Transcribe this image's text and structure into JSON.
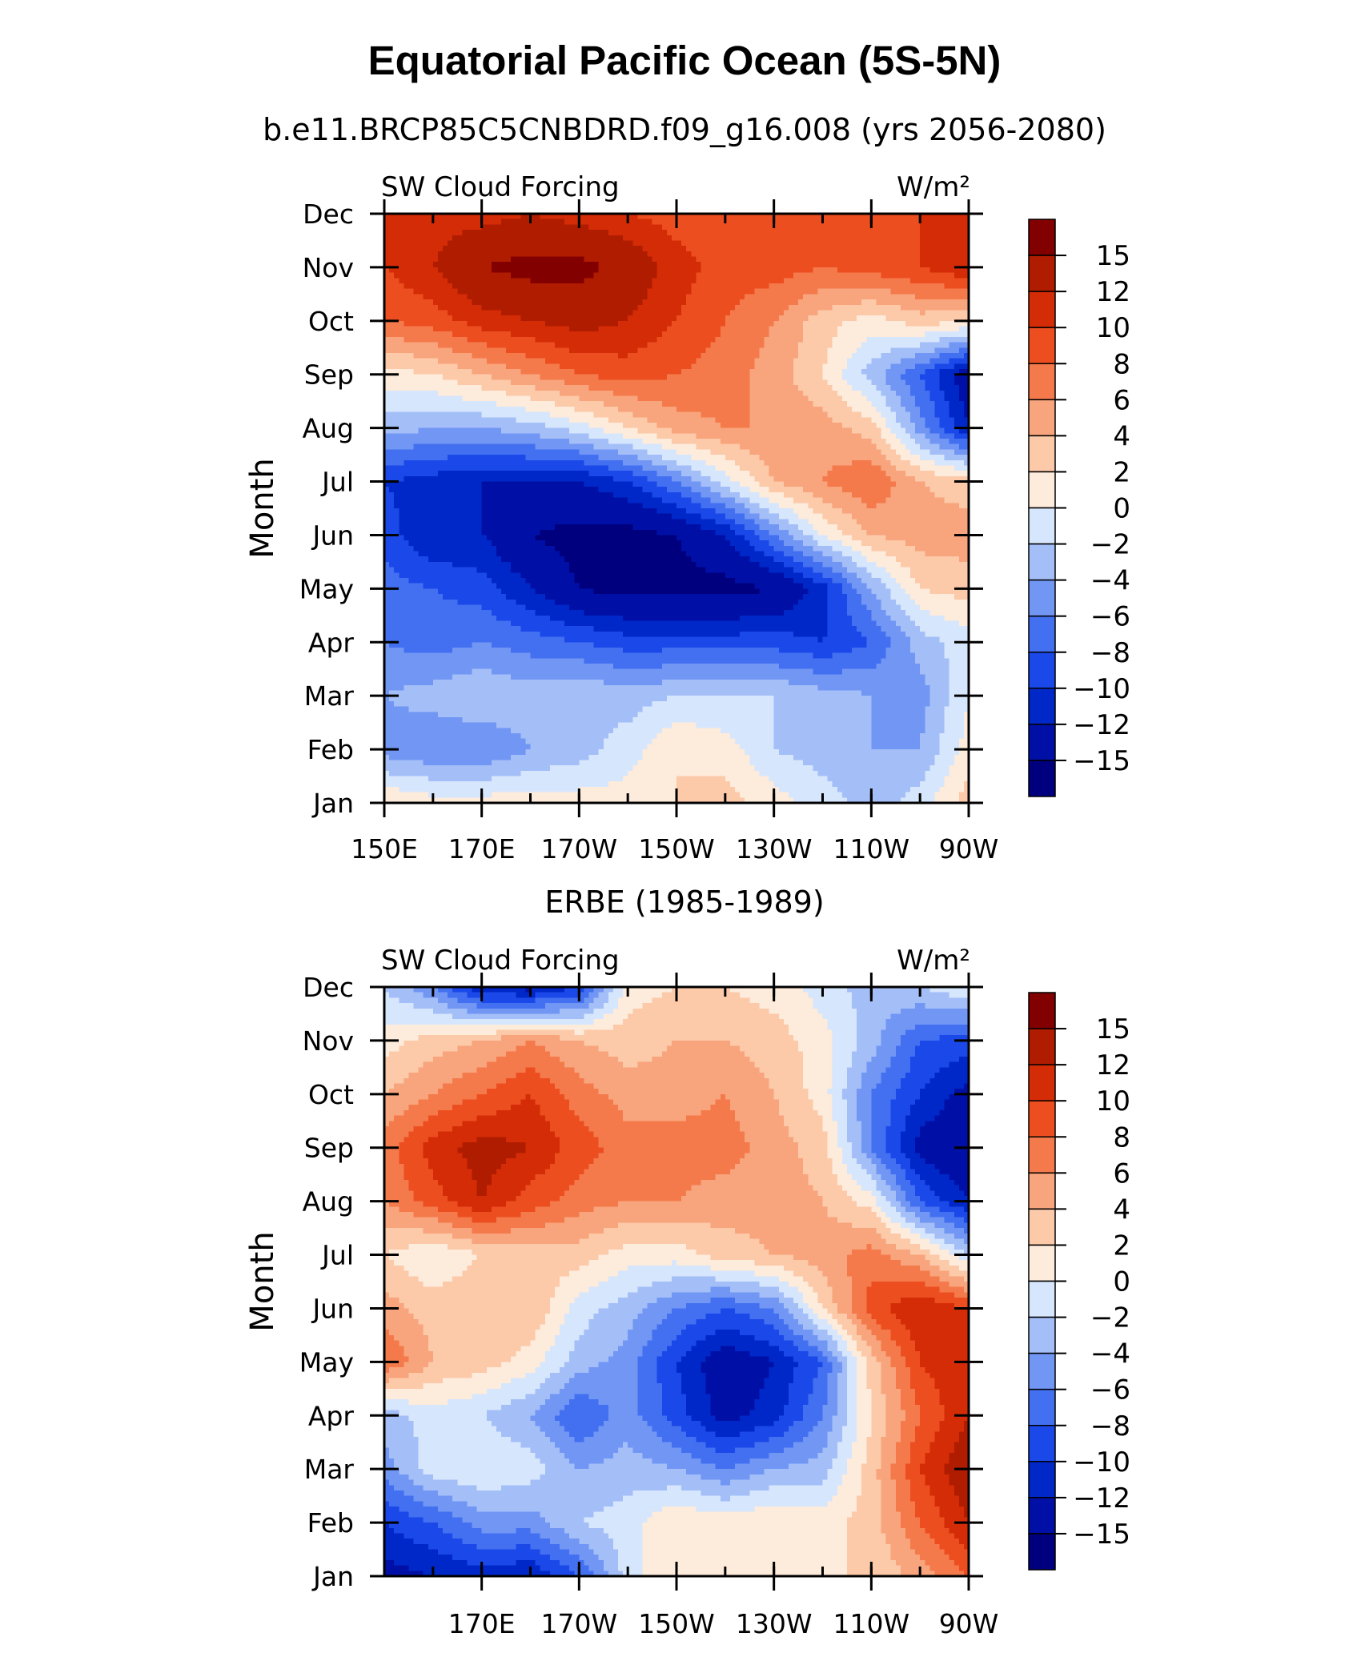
{
  "title": "Equatorial Pacific Ocean (5S-5N)",
  "colorbar": {
    "levels": [
      -15,
      -12,
      -10,
      -8,
      -6,
      -4,
      -2,
      0,
      2,
      4,
      6,
      8,
      10,
      12,
      15
    ],
    "colors": [
      "#00007f",
      "#0010a6",
      "#0028c8",
      "#1b48e8",
      "#4370f0",
      "#7196f4",
      "#a4bef8",
      "#d6e6fc",
      "#fdebdb",
      "#fcc9a9",
      "#f8a47c",
      "#f47a4c",
      "#ec4e20",
      "#d42c06",
      "#b01c00",
      "#830000"
    ]
  },
  "chart_data": [
    {
      "type": "heatmap",
      "subtitle": "b.e11.BRCP85C5CNBDRD.f09_g16.008 (yrs 2056-2080)",
      "left_label": "SW Cloud Forcing",
      "right_label": "W/m²",
      "xlabel": "",
      "ylabel": "Month",
      "x_tick_labels": [
        "150E",
        "170E",
        "170W",
        "150W",
        "130W",
        "110W",
        "90W"
      ],
      "x_tick_values": [
        150,
        170,
        190,
        210,
        230,
        250,
        270
      ],
      "xlim": [
        150,
        270
      ],
      "y_tick_labels": [
        "Jan",
        "Feb",
        "Mar",
        "Apr",
        "May",
        "Jun",
        "Jul",
        "Aug",
        "Sep",
        "Oct",
        "Nov",
        "Dec"
      ],
      "ylim": [
        1,
        12
      ],
      "lons": [
        150,
        160,
        170,
        180,
        190,
        200,
        210,
        220,
        230,
        240,
        250,
        260,
        270
      ],
      "values": [
        [
          2,
          1,
          1,
          1,
          1,
          1,
          2,
          3,
          1,
          -1,
          -3,
          -1,
          3
        ],
        [
          -5,
          -6,
          -6,
          -4,
          -3,
          -1,
          2,
          1,
          -2,
          -3,
          -4,
          -4,
          1
        ],
        [
          -4,
          -3,
          -2,
          -3,
          -2,
          -3,
          -2,
          -2,
          -2,
          -3,
          -4,
          -5,
          0
        ],
        [
          -6,
          -7,
          -6,
          -7,
          -8,
          -9,
          -9,
          -9,
          -9,
          -10,
          -8,
          -3,
          -1
        ],
        [
          -7,
          -8,
          -9,
          -12,
          -15,
          -16,
          -16,
          -16,
          -15,
          -11,
          -4,
          2,
          3
        ],
        [
          -9,
          -12,
          -12,
          -15,
          -16,
          -16,
          -15,
          -12,
          -6,
          0,
          4,
          5,
          5
        ],
        [
          -10,
          -11,
          -12,
          -12,
          -12,
          -10,
          -6,
          -1,
          4,
          6,
          8,
          4,
          3
        ],
        [
          -3,
          -4,
          -4,
          -3,
          -1,
          2,
          5,
          6,
          6,
          5,
          3,
          -5,
          -12
        ],
        [
          1,
          2,
          4,
          6,
          8,
          9,
          8,
          7,
          5,
          2,
          -3,
          -8,
          -14
        ],
        [
          8,
          9,
          11,
          12,
          13,
          12,
          10,
          8,
          6,
          3,
          1,
          3,
          2
        ],
        [
          10,
          12,
          15,
          16,
          16,
          14,
          11,
          9,
          9,
          8,
          9,
          10,
          12
        ],
        [
          10,
          11,
          11,
          12,
          11,
          10,
          9,
          8,
          8,
          8,
          9,
          10,
          10
        ]
      ]
    },
    {
      "type": "heatmap",
      "subtitle": "ERBE (1985-1989)",
      "left_label": "SW Cloud Forcing",
      "right_label": "W/m²",
      "xlabel": "",
      "ylabel": "Month",
      "x_tick_labels": [
        "170E",
        "170W",
        "150W",
        "130W",
        "110W",
        "90W"
      ],
      "x_tick_values": [
        170,
        190,
        210,
        230,
        250,
        270
      ],
      "xlim": [
        150,
        270
      ],
      "y_tick_labels": [
        "Jan",
        "Feb",
        "Mar",
        "Apr",
        "May",
        "Jun",
        "Jul",
        "Aug",
        "Sep",
        "Oct",
        "Nov",
        "Dec"
      ],
      "ylim": [
        1,
        12
      ],
      "lons": [
        150,
        160,
        170,
        180,
        190,
        200,
        210,
        220,
        230,
        240,
        250,
        260,
        270
      ],
      "values": [
        [
          -13,
          -12,
          -11,
          -12,
          -8,
          -1,
          2,
          1,
          1,
          2,
          2,
          5,
          8
        ],
        [
          -10,
          -8,
          -5,
          -5,
          -2,
          -1,
          2,
          1,
          2,
          1,
          3,
          8,
          12
        ],
        [
          -5,
          -1,
          0,
          -1,
          -4,
          -3,
          -4,
          -6,
          -4,
          -3,
          3,
          10,
          14
        ],
        [
          -3,
          -1,
          -2,
          -4,
          -8,
          -5,
          -9,
          -13,
          -11,
          -6,
          2,
          8,
          12
        ],
        [
          8,
          4,
          3,
          1,
          -3,
          -5,
          -10,
          -14,
          -12,
          -8,
          3,
          10,
          12
        ],
        [
          5,
          3,
          4,
          4,
          -1,
          -3,
          -6,
          -8,
          -6,
          2,
          9,
          12,
          10
        ],
        [
          2,
          0,
          2,
          3,
          3,
          1,
          1,
          3,
          4,
          5,
          7,
          4,
          -2
        ],
        [
          6,
          9,
          12,
          9,
          7,
          6,
          6,
          5,
          5,
          4,
          1,
          -8,
          -12
        ],
        [
          7,
          11,
          13,
          12,
          9,
          7,
          7,
          7,
          5,
          3,
          -6,
          -13,
          -15
        ],
        [
          4,
          6,
          8,
          10,
          7,
          5,
          5,
          6,
          4,
          1,
          -6,
          -10,
          -13
        ],
        [
          1,
          3,
          4,
          6,
          4,
          3,
          4,
          4,
          3,
          1,
          -3,
          -8,
          -9
        ],
        [
          -2,
          -6,
          -12,
          -13,
          -10,
          1,
          2,
          2,
          1,
          -1,
          -3,
          -2,
          0
        ]
      ]
    }
  ]
}
